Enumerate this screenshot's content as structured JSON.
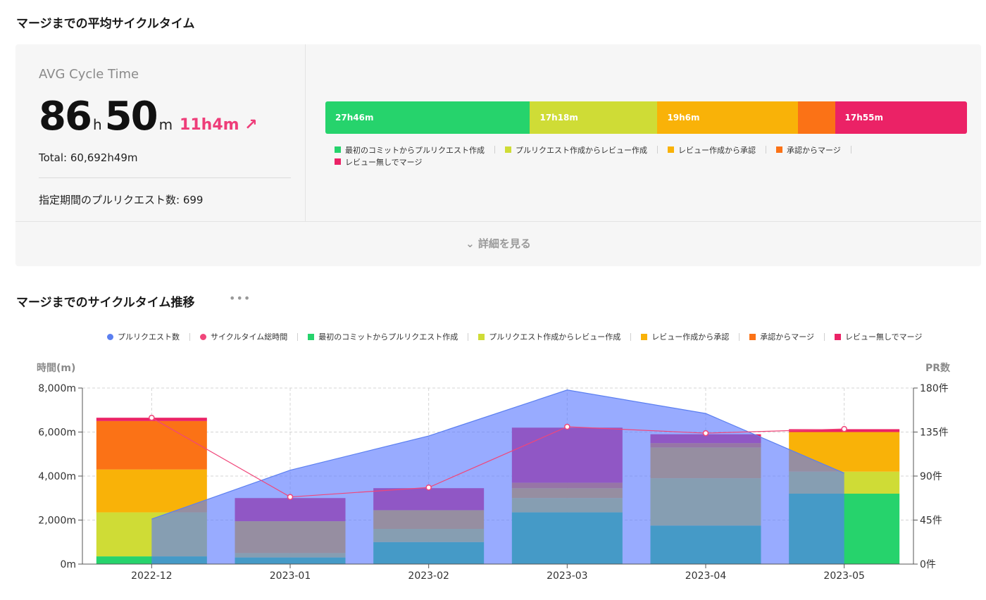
{
  "summary": {
    "title": "マージまでの平均サイクルタイム",
    "avg_label": "AVG Cycle Time",
    "hours": "86",
    "hours_unit": "h",
    "minutes": "50",
    "minutes_unit": "m",
    "diff": "11h4m ↗",
    "total": "Total: 60,692h49m",
    "pr_count": "指定期間のプルリクエスト数: 699",
    "details_link": "⌄ 詳細を見る",
    "segments": [
      {
        "label": "27h46m",
        "value": 1666,
        "color": "#26d36c"
      },
      {
        "label": "17h18m",
        "value": 1038,
        "color": "#cfdc36"
      },
      {
        "label": "19h6m",
        "value": 1146,
        "color": "#f9b208"
      },
      {
        "label": "",
        "value": 300,
        "color": "#fb7216"
      },
      {
        "label": "17h55m",
        "value": 1075,
        "color": "#eb2266"
      }
    ],
    "legend": [
      {
        "label": "最初のコミットからプルリクエスト作成",
        "color": "#26d36c"
      },
      {
        "label": "プルリクエスト作成からレビュー作成",
        "color": "#cfdc36"
      },
      {
        "label": "レビュー作成から承認",
        "color": "#f9b208"
      },
      {
        "label": "承認からマージ",
        "color": "#fb7216"
      },
      {
        "label": "レビュー無しでマージ",
        "color": "#eb2266"
      }
    ]
  },
  "trend": {
    "title": "マージまでのサイクルタイム推移",
    "more": "•••",
    "legend": [
      {
        "label": "プルリクエスト数",
        "color": "#5b7ff0",
        "shape": "dot"
      },
      {
        "label": "サイクルタイム総時間",
        "color": "#f0467a",
        "shape": "dot"
      },
      {
        "label": "最初のコミットからプルリクエスト作成",
        "color": "#26d36c",
        "shape": "square"
      },
      {
        "label": "プルリクエスト作成からレビュー作成",
        "color": "#cfdc36",
        "shape": "square"
      },
      {
        "label": "レビュー作成から承認",
        "color": "#f9b208",
        "shape": "square"
      },
      {
        "label": "承認からマージ",
        "color": "#fb7216",
        "shape": "square"
      },
      {
        "label": "レビュー無しでマージ",
        "color": "#eb2266",
        "shape": "square"
      }
    ]
  },
  "chart_data": {
    "type": "bar",
    "categories": [
      "2022-12",
      "2023-01",
      "2023-02",
      "2023-03",
      "2023-04",
      "2023-05"
    ],
    "ylabel": "時間(m)",
    "y2label": "PR数",
    "ylim": [
      0,
      8000
    ],
    "y2lim": [
      0,
      180
    ],
    "yticks": [
      "0m",
      "2,000m",
      "4,000m",
      "6,000m",
      "8,000m"
    ],
    "y2ticks": [
      "0件",
      "45件",
      "90件",
      "135件",
      "180件"
    ],
    "grid": true,
    "legend_position": "top",
    "series": [
      {
        "name": "最初のコミットからプルリクエスト作成",
        "kind": "bar",
        "color": "#26d36c",
        "values": [
          350,
          300,
          1000,
          2350,
          1750,
          3200
        ]
      },
      {
        "name": "プルリクエスト作成からレビュー作成",
        "kind": "bar",
        "color": "#cfdc36",
        "values": [
          2000,
          200,
          600,
          650,
          2150,
          1000
        ]
      },
      {
        "name": "レビュー作成から承認",
        "kind": "bar",
        "color": "#f9b208",
        "values": [
          1950,
          1450,
          850,
          450,
          1400,
          1800
        ]
      },
      {
        "name": "承認からマージ",
        "kind": "bar",
        "color": "#fb7216",
        "values": [
          2200,
          0,
          0,
          250,
          200,
          0
        ]
      },
      {
        "name": "レビュー無しでマージ",
        "kind": "bar",
        "color": "#eb2266",
        "values": [
          150,
          1050,
          1000,
          2500,
          400,
          130
        ]
      },
      {
        "name": "プルリクエスト数",
        "kind": "area",
        "color": "#5b7ff0",
        "axis": "right",
        "values": [
          46,
          96,
          131,
          178,
          154,
          93
        ]
      },
      {
        "name": "サイクルタイム総時間",
        "kind": "line",
        "color": "#f0467a",
        "values": [
          6650,
          3050,
          3480,
          6240,
          5950,
          6140
        ]
      }
    ]
  }
}
